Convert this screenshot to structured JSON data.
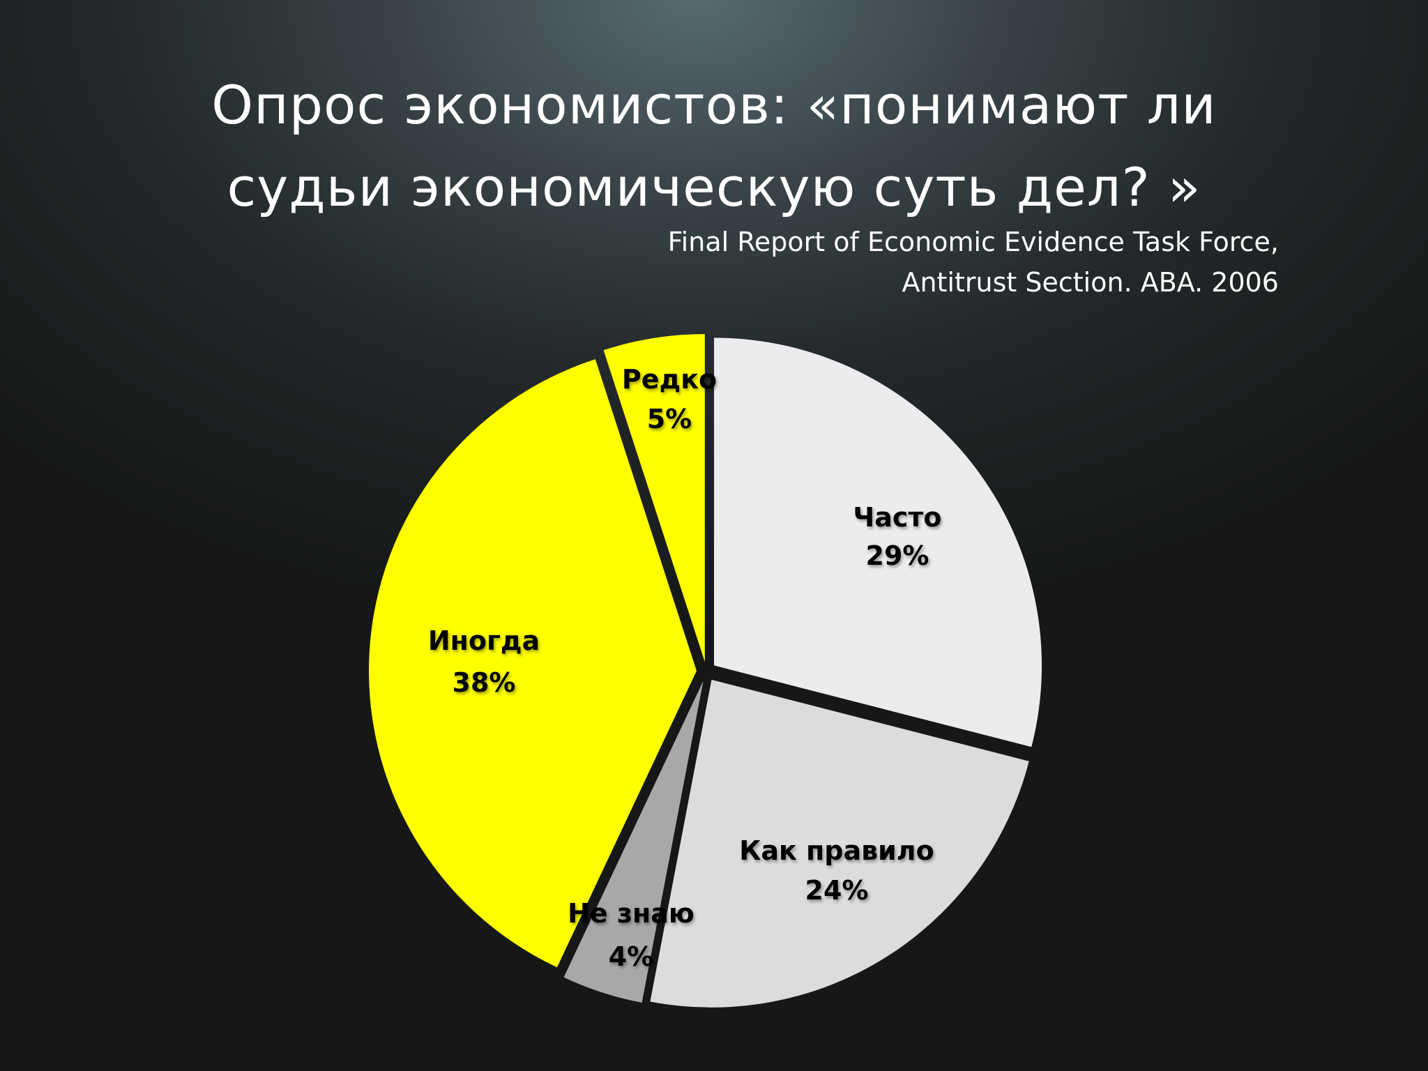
{
  "title": {
    "line1": "Опрос экономистов: «понимают ли",
    "line2": "судьи экономическую суть дел? »"
  },
  "source": {
    "line1": "Final Report of Economic Evidence Task Force,",
    "line2": "Antitrust Section. ABA. 2006"
  },
  "chart_data": {
    "type": "pie",
    "slices": [
      {
        "label": "Часто",
        "value": 29,
        "value_label": "29%",
        "color": "#ececee"
      },
      {
        "label": "Как правило",
        "value": 24,
        "value_label": "24%",
        "color": "#dcdcde"
      },
      {
        "label": "Не знаю",
        "value": 4,
        "value_label": "4%",
        "color": "#a8a8aa"
      },
      {
        "label": "Иногда",
        "value": 38,
        "value_label": "38%",
        "color": "#ffff00"
      },
      {
        "label": "Редко",
        "value": 5,
        "value_label": "5%",
        "color": "#ffff00"
      }
    ]
  }
}
